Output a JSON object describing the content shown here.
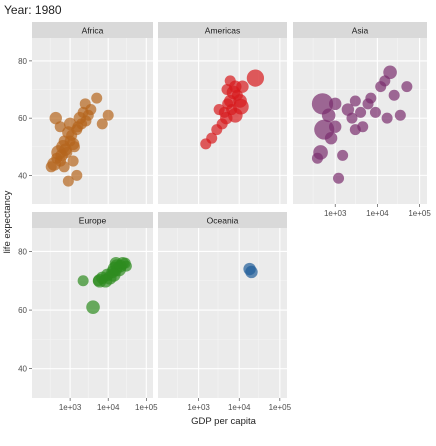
{
  "chart_data": {
    "type": "scatter",
    "title": "Year: 1980",
    "xlabel": "GDP per capita",
    "ylabel": "life expectancy",
    "x_scale": "log10",
    "xlim": [
      100,
      150000
    ],
    "ylim": [
      30,
      88
    ],
    "x_ticks": [
      1000,
      10000,
      100000
    ],
    "x_tick_labels": [
      "1e+03",
      "1e+04",
      "1e+05"
    ],
    "y_ticks": [
      40,
      60,
      80
    ],
    "y_tick_labels": [
      "40",
      "60",
      "80"
    ],
    "grid": true,
    "legend": "none",
    "facets": [
      {
        "name": "Africa",
        "color": "#b5651d",
        "points": [
          {
            "x": 320,
            "y": 43,
            "size": 2
          },
          {
            "x": 380,
            "y": 44,
            "size": 4
          },
          {
            "x": 450,
            "y": 46,
            "size": 2
          },
          {
            "x": 500,
            "y": 48,
            "size": 5
          },
          {
            "x": 560,
            "y": 45,
            "size": 2
          },
          {
            "x": 600,
            "y": 47,
            "size": 3
          },
          {
            "x": 650,
            "y": 50,
            "size": 4
          },
          {
            "x": 700,
            "y": 52,
            "size": 2
          },
          {
            "x": 760,
            "y": 49,
            "size": 3
          },
          {
            "x": 820,
            "y": 48,
            "size": 2
          },
          {
            "x": 900,
            "y": 55,
            "size": 3
          },
          {
            "x": 1000,
            "y": 52,
            "size": 2
          },
          {
            "x": 1100,
            "y": 54,
            "size": 2
          },
          {
            "x": 1200,
            "y": 51,
            "size": 3
          },
          {
            "x": 1300,
            "y": 50,
            "size": 2
          },
          {
            "x": 1500,
            "y": 56,
            "size": 2
          },
          {
            "x": 1600,
            "y": 57,
            "size": 2
          },
          {
            "x": 1800,
            "y": 60,
            "size": 3
          },
          {
            "x": 2000,
            "y": 58,
            "size": 2
          },
          {
            "x": 2200,
            "y": 62,
            "size": 2
          },
          {
            "x": 2600,
            "y": 59,
            "size": 2
          },
          {
            "x": 3000,
            "y": 61,
            "size": 2
          },
          {
            "x": 3500,
            "y": 63,
            "size": 2
          },
          {
            "x": 700,
            "y": 43,
            "size": 2
          },
          {
            "x": 1500,
            "y": 40,
            "size": 2
          },
          {
            "x": 900,
            "y": 38,
            "size": 2
          },
          {
            "x": 420,
            "y": 60,
            "size": 3
          },
          {
            "x": 550,
            "y": 57,
            "size": 2
          },
          {
            "x": 1000,
            "y": 58,
            "size": 3
          },
          {
            "x": 2500,
            "y": 65,
            "size": 2
          },
          {
            "x": 5000,
            "y": 67,
            "size": 2
          },
          {
            "x": 7000,
            "y": 58,
            "size": 2
          },
          {
            "x": 10000,
            "y": 61,
            "size": 2
          },
          {
            "x": 1200,
            "y": 45,
            "size": 2
          }
        ]
      },
      {
        "name": "Americas",
        "color": "#d7191c",
        "points": [
          {
            "x": 1500,
            "y": 51,
            "size": 2
          },
          {
            "x": 2100,
            "y": 53,
            "size": 2
          },
          {
            "x": 2800,
            "y": 56,
            "size": 2
          },
          {
            "x": 3200,
            "y": 63,
            "size": 2
          },
          {
            "x": 3800,
            "y": 58,
            "size": 2
          },
          {
            "x": 4300,
            "y": 62,
            "size": 2
          },
          {
            "x": 4800,
            "y": 60,
            "size": 3
          },
          {
            "x": 5200,
            "y": 65,
            "size": 2
          },
          {
            "x": 6000,
            "y": 66,
            "size": 3
          },
          {
            "x": 6500,
            "y": 63,
            "size": 2
          },
          {
            "x": 7200,
            "y": 69,
            "size": 4
          },
          {
            "x": 8000,
            "y": 71,
            "size": 3
          },
          {
            "x": 9000,
            "y": 68,
            "size": 2
          },
          {
            "x": 10500,
            "y": 66,
            "size": 4
          },
          {
            "x": 12000,
            "y": 71,
            "size": 3
          },
          {
            "x": 8000,
            "y": 61,
            "size": 5
          },
          {
            "x": 11000,
            "y": 64,
            "size": 6
          },
          {
            "x": 25000,
            "y": 74,
            "size": 8
          },
          {
            "x": 6000,
            "y": 73,
            "size": 2
          },
          {
            "x": 5000,
            "y": 70,
            "size": 2
          }
        ]
      },
      {
        "name": "Asia",
        "color": "#7b2d6e",
        "points": [
          {
            "x": 500,
            "y": 65,
            "size": 14
          },
          {
            "x": 550,
            "y": 56,
            "size": 12
          },
          {
            "x": 700,
            "y": 61,
            "size": 4
          },
          {
            "x": 800,
            "y": 53,
            "size": 3
          },
          {
            "x": 450,
            "y": 48,
            "size": 5
          },
          {
            "x": 380,
            "y": 46,
            "size": 2
          },
          {
            "x": 1000,
            "y": 57,
            "size": 3
          },
          {
            "x": 1200,
            "y": 39,
            "size": 2
          },
          {
            "x": 1500,
            "y": 47,
            "size": 2
          },
          {
            "x": 2000,
            "y": 63,
            "size": 3
          },
          {
            "x": 2500,
            "y": 60,
            "size": 2
          },
          {
            "x": 3000,
            "y": 66,
            "size": 2
          },
          {
            "x": 4000,
            "y": 62,
            "size": 2
          },
          {
            "x": 4500,
            "y": 57,
            "size": 2
          },
          {
            "x": 6000,
            "y": 65,
            "size": 2
          },
          {
            "x": 7000,
            "y": 67,
            "size": 2
          },
          {
            "x": 9000,
            "y": 62,
            "size": 2
          },
          {
            "x": 12000,
            "y": 71,
            "size": 2
          },
          {
            "x": 15000,
            "y": 73,
            "size": 2
          },
          {
            "x": 20000,
            "y": 76,
            "size": 4
          },
          {
            "x": 25000,
            "y": 68,
            "size": 2
          },
          {
            "x": 35000,
            "y": 61,
            "size": 2
          },
          {
            "x": 50000,
            "y": 71,
            "size": 2
          },
          {
            "x": 17000,
            "y": 60,
            "size": 2
          },
          {
            "x": 3000,
            "y": 56,
            "size": 2
          },
          {
            "x": 1000,
            "y": 65,
            "size": 3
          }
        ]
      },
      {
        "name": "Europe",
        "color": "#2e8b1f",
        "points": [
          {
            "x": 4000,
            "y": 61,
            "size": 4
          },
          {
            "x": 5500,
            "y": 70,
            "size": 2
          },
          {
            "x": 7000,
            "y": 71,
            "size": 3
          },
          {
            "x": 8500,
            "y": 70,
            "size": 4
          },
          {
            "x": 9500,
            "y": 72,
            "size": 3
          },
          {
            "x": 11000,
            "y": 71,
            "size": 4
          },
          {
            "x": 13000,
            "y": 73,
            "size": 3
          },
          {
            "x": 15000,
            "y": 74,
            "size": 5
          },
          {
            "x": 17000,
            "y": 75,
            "size": 4
          },
          {
            "x": 19000,
            "y": 74,
            "size": 5
          },
          {
            "x": 21000,
            "y": 75,
            "size": 3
          },
          {
            "x": 24000,
            "y": 76,
            "size": 3
          },
          {
            "x": 28000,
            "y": 76,
            "size": 2
          },
          {
            "x": 30000,
            "y": 75,
            "size": 2
          },
          {
            "x": 16000,
            "y": 76,
            "size": 3
          },
          {
            "x": 14000,
            "y": 72,
            "size": 4
          },
          {
            "x": 6000,
            "y": 70,
            "size": 4
          },
          {
            "x": 2200,
            "y": 70,
            "size": 2
          }
        ]
      },
      {
        "name": "Oceania",
        "color": "#1f5c99",
        "points": [
          {
            "x": 18000,
            "y": 74,
            "size": 3
          },
          {
            "x": 20000,
            "y": 73,
            "size": 3
          }
        ]
      }
    ]
  }
}
